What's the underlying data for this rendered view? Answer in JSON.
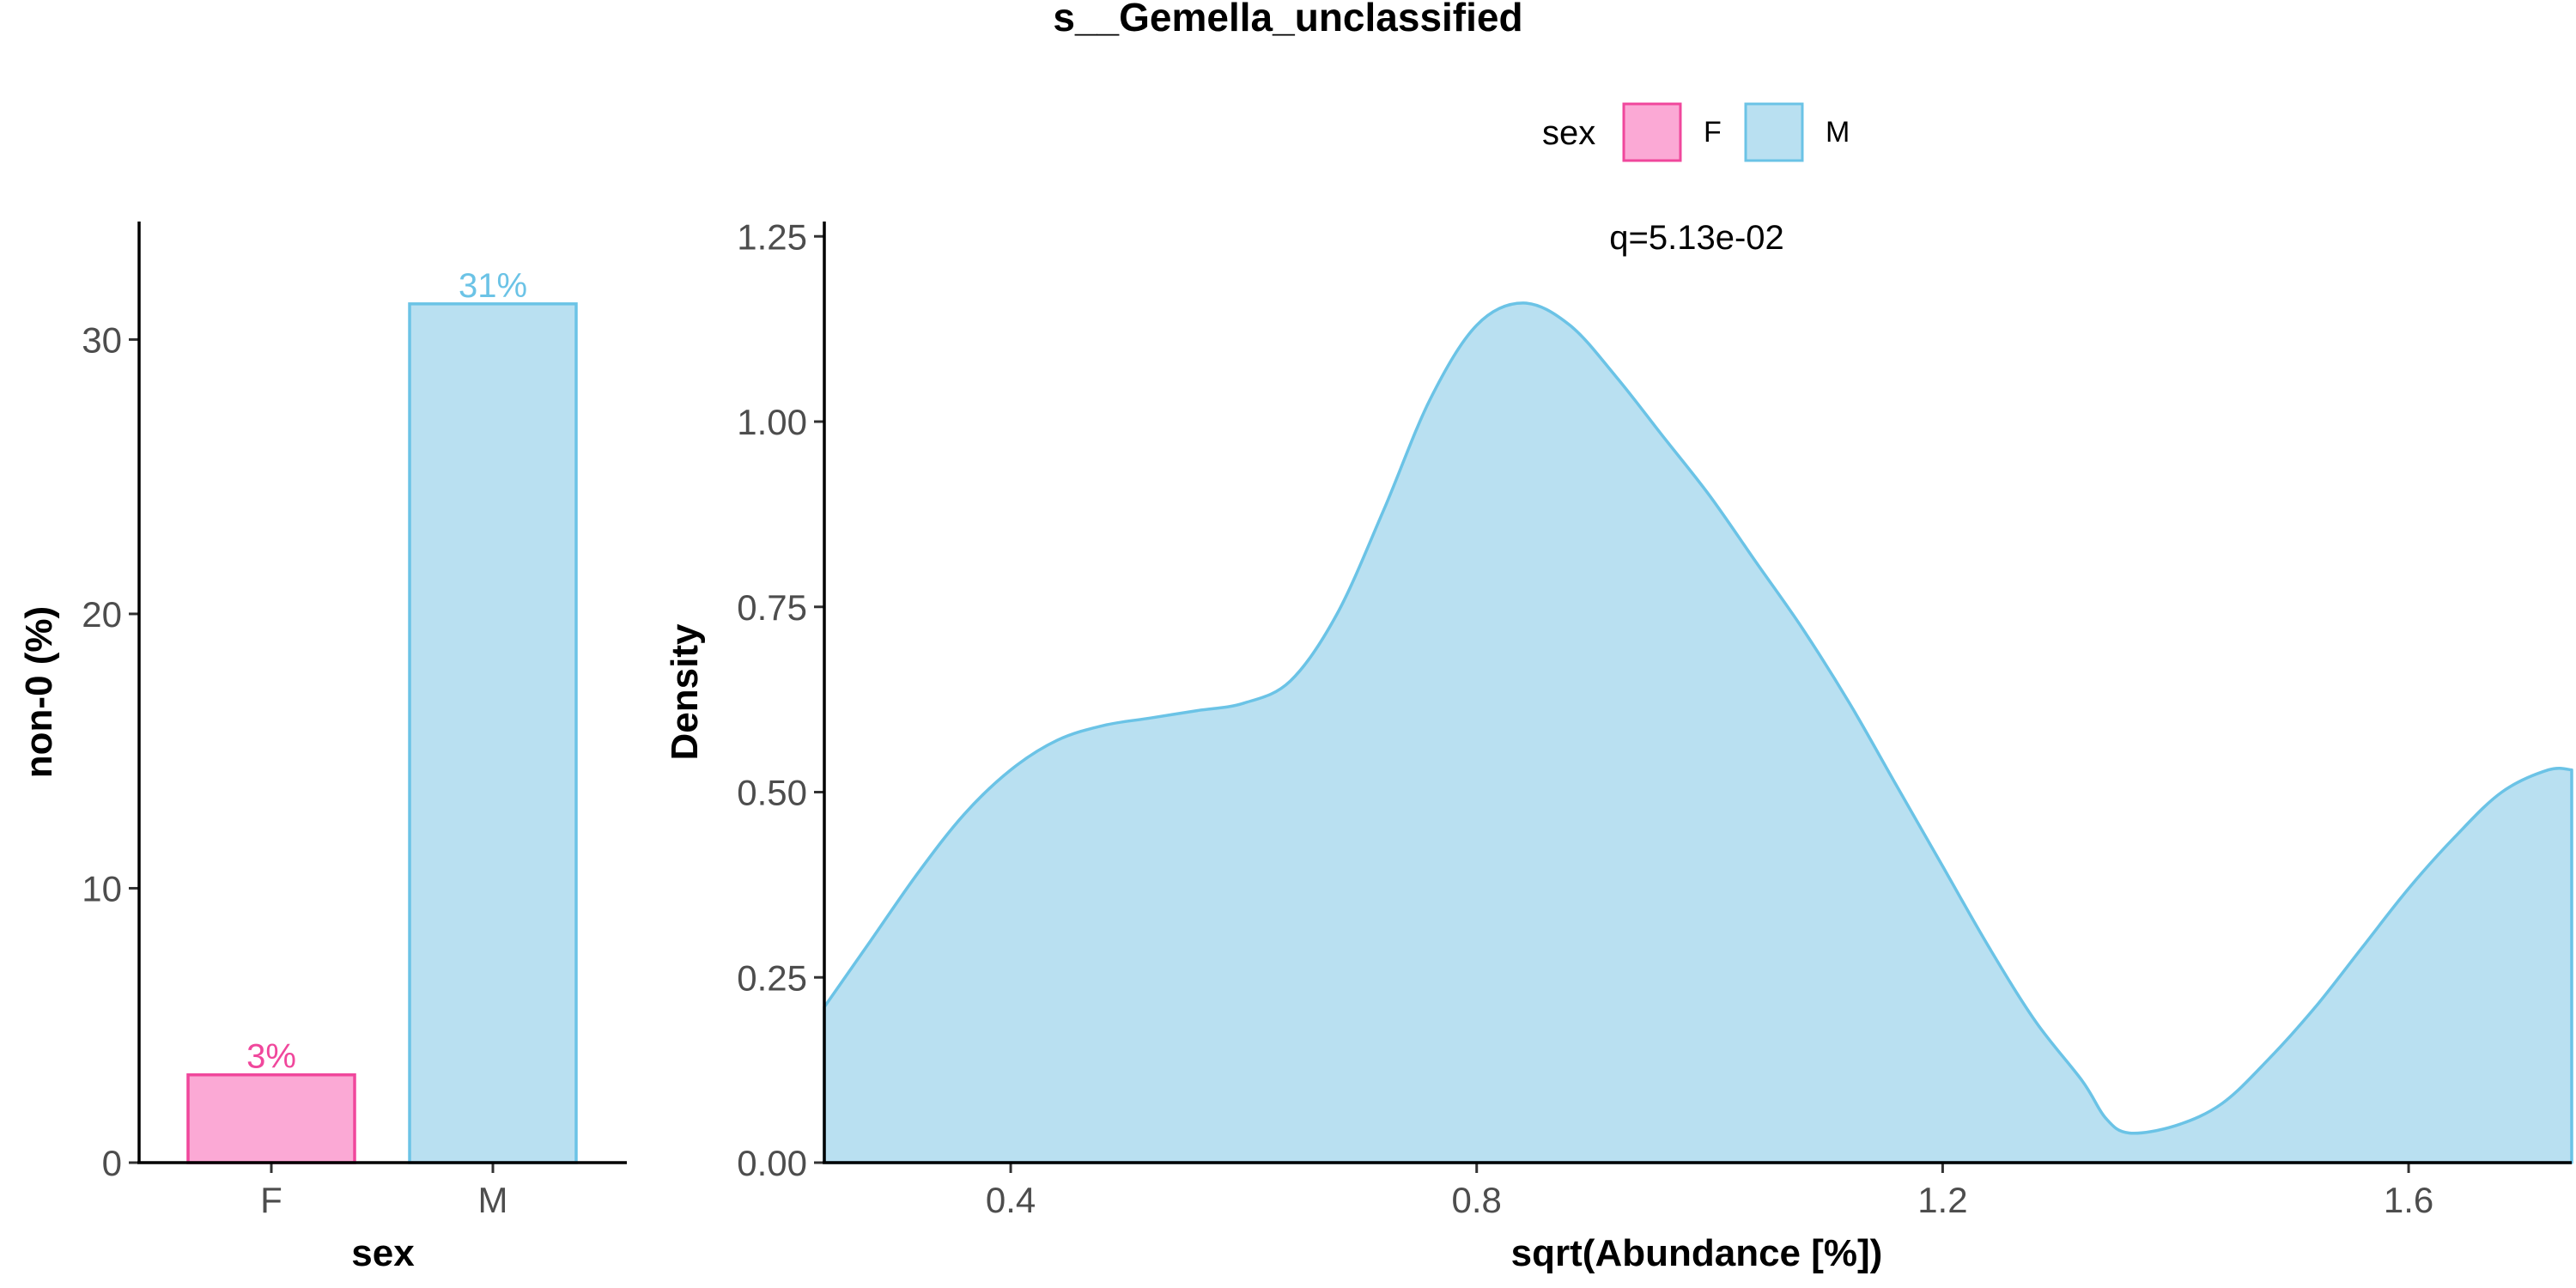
{
  "title": "s__Gemella_unclassified",
  "legend": {
    "title": "sex",
    "placement": "top",
    "items": [
      {
        "label": "F",
        "fill": "#fba9d5",
        "stroke": "#f0479c"
      },
      {
        "label": "M",
        "fill": "#b9e0f1",
        "stroke": "#6bc3e6"
      }
    ]
  },
  "chart_data": [
    {
      "type": "bar",
      "categories": [
        "F",
        "M"
      ],
      "values": [
        3.2,
        31.3
      ],
      "data_labels": [
        "3%",
        "31%"
      ],
      "xlabel": "sex",
      "ylabel": "non-0 (%)",
      "ylim": [
        0,
        34.3
      ],
      "yticks": [
        0,
        10,
        20,
        30
      ],
      "ytick_labels": [
        "0",
        "10",
        "20",
        "30"
      ],
      "grid": false,
      "colors": {
        "F": {
          "fill": "#fba9d5",
          "stroke": "#f0479c",
          "label": "#f0479c"
        },
        "M": {
          "fill": "#b9e0f1",
          "stroke": "#6bc3e6",
          "label": "#6bc3e6"
        }
      }
    },
    {
      "type": "area",
      "xlabel": "sqrt(Abundance [%])",
      "ylabel": "Density",
      "xlim": [
        0.24,
        1.74
      ],
      "ylim": [
        0,
        1.27
      ],
      "xticks": [
        0.4,
        0.8,
        1.2,
        1.6
      ],
      "xtick_labels": [
        "0.4",
        "0.8",
        "1.2",
        "1.6"
      ],
      "yticks": [
        0,
        0.25,
        0.5,
        0.75,
        1.0,
        1.25
      ],
      "ytick_labels": [
        "0.00",
        "0.25",
        "0.50",
        "0.75",
        "1.00",
        "1.25"
      ],
      "annotation": "q=5.13e-02",
      "grid": false,
      "series": [
        {
          "name": "M",
          "fill": "#b9e0f1",
          "stroke": "#6bc3e6",
          "x": [
            0.24,
            0.28,
            0.32,
            0.36,
            0.4,
            0.44,
            0.48,
            0.52,
            0.56,
            0.6,
            0.64,
            0.68,
            0.72,
            0.76,
            0.8,
            0.84,
            0.88,
            0.92,
            0.96,
            1.0,
            1.04,
            1.08,
            1.12,
            1.16,
            1.2,
            1.24,
            1.28,
            1.32,
            1.34,
            1.36,
            1.4,
            1.44,
            1.48,
            1.52,
            1.56,
            1.6,
            1.64,
            1.68,
            1.72,
            1.74
          ],
          "y": [
            0.21,
            0.3,
            0.39,
            0.47,
            0.53,
            0.57,
            0.59,
            0.6,
            0.61,
            0.62,
            0.65,
            0.74,
            0.88,
            1.03,
            1.13,
            1.16,
            1.13,
            1.06,
            0.98,
            0.9,
            0.81,
            0.72,
            0.62,
            0.51,
            0.4,
            0.29,
            0.19,
            0.11,
            0.06,
            0.04,
            0.05,
            0.08,
            0.14,
            0.21,
            0.29,
            0.37,
            0.44,
            0.5,
            0.53,
            0.53
          ]
        }
      ]
    }
  ]
}
